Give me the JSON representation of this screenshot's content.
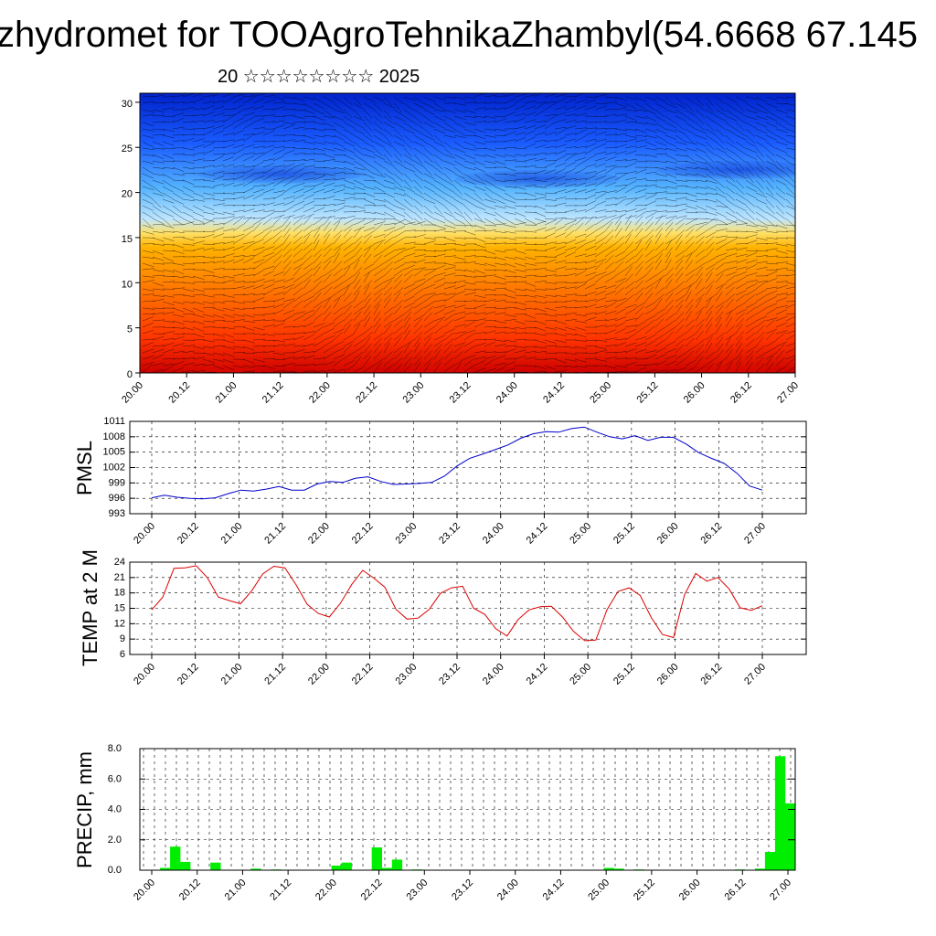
{
  "page": {
    "title": "zhydromet for TOOAgroTehnikaZhambyl(54.6668 67.145",
    "subtitle": "20 ☆☆☆☆☆☆☆☆ 2025"
  },
  "colors": {
    "pmsl_line": "#0000cc",
    "temp_line": "#dd0000",
    "precip_bar": "#00ee00",
    "grid": "#000000"
  },
  "time_ticks": [
    "20.00",
    "20.12",
    "21.00",
    "21.12",
    "22.00",
    "22.12",
    "23.00",
    "23.12",
    "24.00",
    "24.12",
    "25.00",
    "25.12",
    "26.00",
    "26.12",
    "27.00"
  ],
  "chart_data": [
    {
      "type": "heatmap",
      "title": "",
      "xlabel": "",
      "ylabel": "",
      "ylim": [
        0,
        31
      ],
      "y_ticks": [
        "0",
        "5",
        "10",
        "15",
        "20",
        "25",
        "30"
      ],
      "description_of_values": "temperature-coloured vertical cross-section with wind barbs; warm (red) near surface, cold (blue) above ~17",
      "color_scale": [
        "#cc0000",
        "#ff3300",
        "#ff7700",
        "#ffb300",
        "#ffe066",
        "#bfe6ff",
        "#55b4ff",
        "#1a5cff",
        "#0022cc"
      ]
    },
    {
      "type": "line",
      "ylabel": "PMSL",
      "ylim": [
        993,
        1011
      ],
      "y_ticks": [
        "993",
        "996",
        "999",
        "1002",
        "1005",
        "1008",
        "1011"
      ],
      "series": [
        {
          "values": [
            996.1,
            996.6,
            996.2,
            996.0,
            995.9,
            996.1,
            996.9,
            997.6,
            997.4,
            997.8,
            998.3,
            997.6,
            997.6,
            998.8,
            999.3,
            999.1,
            999.9,
            1000.2,
            999.3,
            998.7,
            998.8,
            998.9,
            999.1,
            1000.3,
            1002.3,
            1003.8,
            1004.6,
            1005.5,
            1006.4,
            1007.7,
            1008.6,
            1009.0,
            1008.9,
            1009.6,
            1009.9,
            1008.9,
            1008.0,
            1007.6,
            1008.2,
            1007.3,
            1007.9,
            1007.9,
            1006.6,
            1004.9,
            1003.8,
            1002.8,
            1000.9,
            998.4,
            997.6
          ]
        }
      ]
    },
    {
      "type": "line",
      "ylabel": "TEMP at 2 M",
      "ylim": [
        6,
        24
      ],
      "y_ticks": [
        "6",
        "9",
        "12",
        "15",
        "18",
        "21",
        "24"
      ],
      "series": [
        {
          "values": [
            14.7,
            17.2,
            22.8,
            22.9,
            23.3,
            21.0,
            17.2,
            16.5,
            15.9,
            18.4,
            21.7,
            23.2,
            22.9,
            19.6,
            15.8,
            14.0,
            13.3,
            16.0,
            19.6,
            22.4,
            20.9,
            19.1,
            14.8,
            12.9,
            13.1,
            14.8,
            17.9,
            19.0,
            19.3,
            15.0,
            13.8,
            11.0,
            9.6,
            12.8,
            14.7,
            15.3,
            15.4,
            13.3,
            10.5,
            8.7,
            8.8,
            14.7,
            18.3,
            19.0,
            17.5,
            13.2,
            9.9,
            9.3,
            17.7,
            21.8,
            20.3,
            21.0,
            18.8,
            15.1,
            14.6,
            15.5
          ]
        }
      ]
    },
    {
      "type": "bar",
      "ylabel": "PRECIP, mm",
      "ylim": [
        0,
        8
      ],
      "y_ticks": [
        "0.0",
        "2.0",
        "4.0",
        "6.0",
        "8.0"
      ],
      "series": [
        {
          "values": [
            0,
            0,
            0.15,
            1.55,
            0.55,
            0,
            0,
            0.5,
            0,
            0,
            0,
            0.1,
            0,
            0.05,
            0,
            0,
            0,
            0,
            0,
            0.3,
            0.5,
            0,
            0,
            1.5,
            0.15,
            0.7,
            0,
            0.05,
            0,
            0,
            0,
            0,
            0,
            0,
            0,
            0,
            0,
            0,
            0,
            0,
            0,
            0,
            0,
            0,
            0,
            0,
            0.15,
            0.1,
            0,
            0.05,
            0,
            0,
            0,
            0,
            0,
            0,
            0,
            0,
            0,
            0.05,
            0,
            0.1,
            1.2,
            7.5,
            4.4
          ]
        }
      ]
    }
  ]
}
